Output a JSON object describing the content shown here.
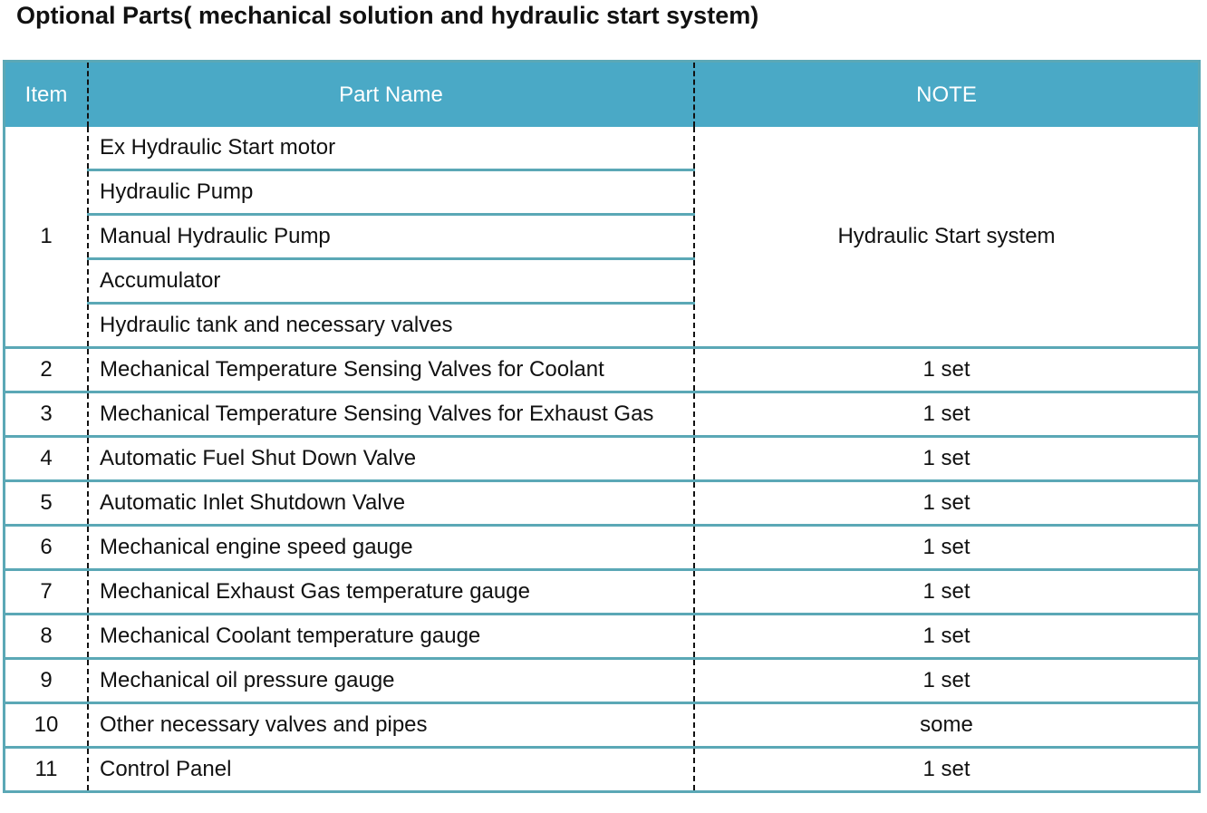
{
  "title": "Optional Parts( mechanical solution and hydraulic start system)",
  "table": {
    "headers": {
      "item": "Item",
      "part_name": "Part Name",
      "note": "NOTE"
    },
    "group1": {
      "item": "1",
      "note": "Hydraulic Start system",
      "parts": [
        "Ex Hydraulic Start motor",
        "Hydraulic Pump",
        "Manual Hydraulic Pump",
        "Accumulator",
        "Hydraulic tank and necessary valves"
      ]
    },
    "rows": [
      {
        "item": "2",
        "part": "Mechanical Temperature Sensing Valves for Coolant",
        "note": "1 set"
      },
      {
        "item": "3",
        "part": "Mechanical Temperature Sensing Valves for Exhaust Gas",
        "note": "1 set"
      },
      {
        "item": "4",
        "part": "Automatic Fuel Shut Down Valve",
        "note": "1 set"
      },
      {
        "item": "5",
        "part": "Automatic Inlet Shutdown Valve",
        "note": "1 set"
      },
      {
        "item": "6",
        "part": "Mechanical engine speed gauge",
        "note": "1 set"
      },
      {
        "item": "7",
        "part": "Mechanical Exhaust Gas temperature gauge",
        "note": "1 set"
      },
      {
        "item": "8",
        "part": "Mechanical Coolant temperature gauge",
        "note": "1 set"
      },
      {
        "item": "9",
        "part": "Mechanical oil pressure gauge",
        "note": "1 set"
      },
      {
        "item": "10",
        "part": "Other necessary valves and pipes",
        "note": "some"
      },
      {
        "item": "11",
        "part": "Control Panel",
        "note": "1 set"
      }
    ]
  },
  "colors": {
    "header_bg": "#4aa9c6",
    "border": "#5ba8b6",
    "header_text": "#ffffff"
  }
}
